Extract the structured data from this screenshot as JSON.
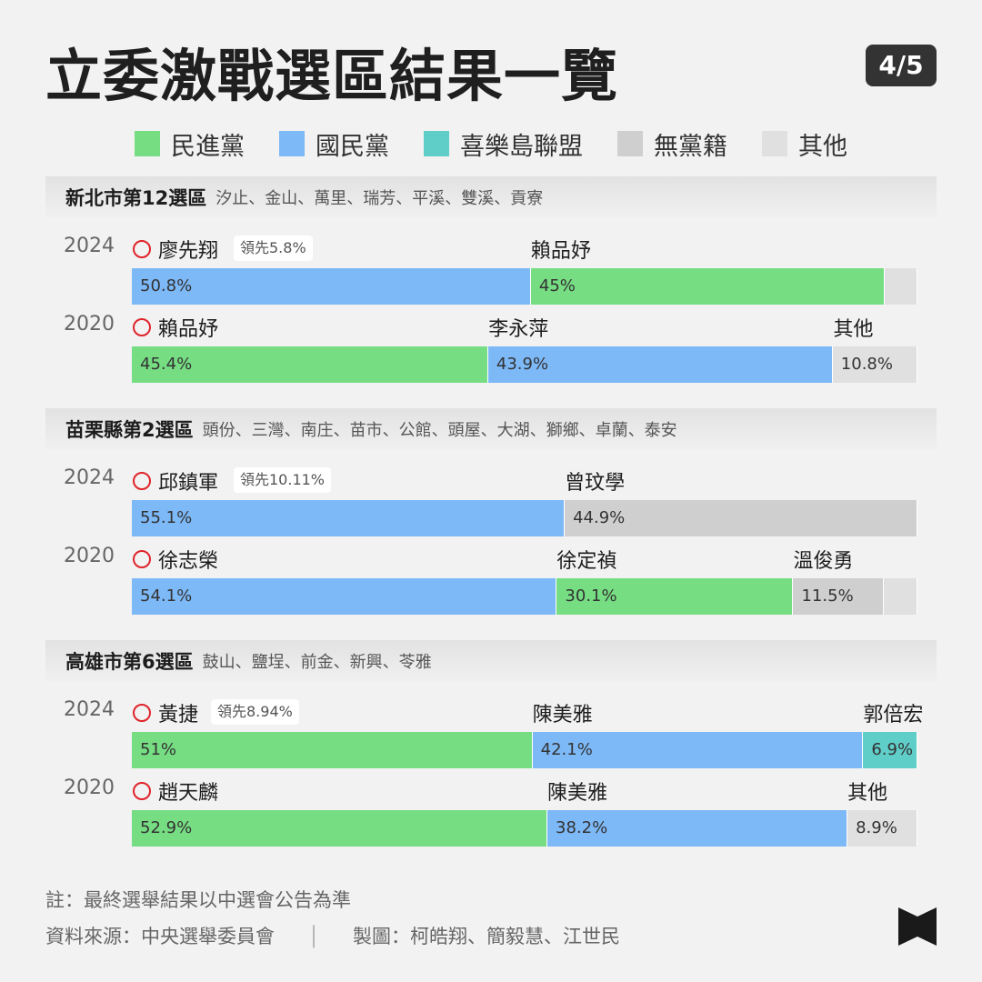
{
  "title": "立委激戰選區結果一覽",
  "page_indicator": "4/5",
  "colors": {
    "民進黨": "#76dd83",
    "國民黨": "#7db8f7",
    "喜樂島聯盟": "#5fcdc8",
    "無黨籍": "#cfcfcf",
    "其他": "#e0e0e0",
    "winner_mark": "#e0242b"
  },
  "legend": [
    {
      "label": "民進黨",
      "color": "#76dd83"
    },
    {
      "label": "國民黨",
      "color": "#7db8f7"
    },
    {
      "label": "喜樂島聯盟",
      "color": "#5fcdc8"
    },
    {
      "label": "無黨籍",
      "color": "#cfcfcf"
    },
    {
      "label": "其他",
      "color": "#e0e0e0"
    }
  ],
  "chart_data": {
    "type": "bar",
    "districts": [
      {
        "name": "新北市第12選區",
        "areas": "汐止、金山、萬里、瑞芳、平溪、雙溪、貢寮",
        "elections": [
          {
            "year": "2024",
            "winner": "廖先翔",
            "lead": "領先5.8%",
            "segments": [
              {
                "candidate": "",
                "party": "國民黨",
                "value": 50.8,
                "label": "50.8%"
              },
              {
                "candidate": "賴品妤",
                "party": "民進黨",
                "value": 45,
                "label": "45%"
              },
              {
                "candidate": "",
                "party": "其他",
                "value": 4.2,
                "label": ""
              }
            ]
          },
          {
            "year": "2020",
            "winner": "賴品妤",
            "lead": "",
            "segments": [
              {
                "candidate": "",
                "party": "民進黨",
                "value": 45.4,
                "label": "45.4%"
              },
              {
                "candidate": "李永萍",
                "party": "國民黨",
                "value": 43.9,
                "label": "43.9%"
              },
              {
                "candidate": "其他",
                "party": "其他",
                "value": 10.8,
                "label": "10.8%"
              }
            ]
          }
        ]
      },
      {
        "name": "苗栗縣第2選區",
        "areas": "頭份、三灣、南庄、苗市、公館、頭屋、大湖、獅鄉、卓蘭、泰安",
        "elections": [
          {
            "year": "2024",
            "winner": "邱鎮軍",
            "lead": "領先10.11%",
            "segments": [
              {
                "candidate": "",
                "party": "國民黨",
                "value": 55.1,
                "label": "55.1%"
              },
              {
                "candidate": "曾玟學",
                "party": "無黨籍",
                "value": 44.9,
                "label": "44.9%"
              }
            ]
          },
          {
            "year": "2020",
            "winner": "徐志榮",
            "lead": "",
            "segments": [
              {
                "candidate": "",
                "party": "國民黨",
                "value": 54.1,
                "label": "54.1%"
              },
              {
                "candidate": "徐定禎",
                "party": "民進黨",
                "value": 30.1,
                "label": "30.1%"
              },
              {
                "candidate": "溫俊勇",
                "party": "無黨籍",
                "value": 11.5,
                "label": "11.5%"
              },
              {
                "candidate": "",
                "party": "其他",
                "value": 4.3,
                "label": ""
              }
            ]
          }
        ]
      },
      {
        "name": "高雄市第6選區",
        "areas": "鼓山、鹽埕、前金、新興、苓雅",
        "elections": [
          {
            "year": "2024",
            "winner": "黃捷",
            "lead": "領先8.94%",
            "segments": [
              {
                "candidate": "",
                "party": "民進黨",
                "value": 51,
                "label": "51%"
              },
              {
                "candidate": "陳美雅",
                "party": "國民黨",
                "value": 42.1,
                "label": "42.1%"
              },
              {
                "candidate": "郭倍宏",
                "party": "喜樂島聯盟",
                "value": 6.9,
                "label": "6.9%"
              }
            ]
          },
          {
            "year": "2020",
            "winner": "趙天麟",
            "lead": "",
            "segments": [
              {
                "candidate": "",
                "party": "民進黨",
                "value": 52.9,
                "label": "52.9%"
              },
              {
                "candidate": "陳美雅",
                "party": "國民黨",
                "value": 38.2,
                "label": "38.2%"
              },
              {
                "candidate": "其他",
                "party": "其他",
                "value": 8.9,
                "label": "8.9%"
              }
            ]
          }
        ]
      }
    ]
  },
  "footer": {
    "note": "註：最終選舉結果以中選會公告為準",
    "source": "資料來源：中央選舉委員會",
    "separator": "│",
    "credits": "製圖：柯皓翔、簡毅慧、江世民"
  }
}
